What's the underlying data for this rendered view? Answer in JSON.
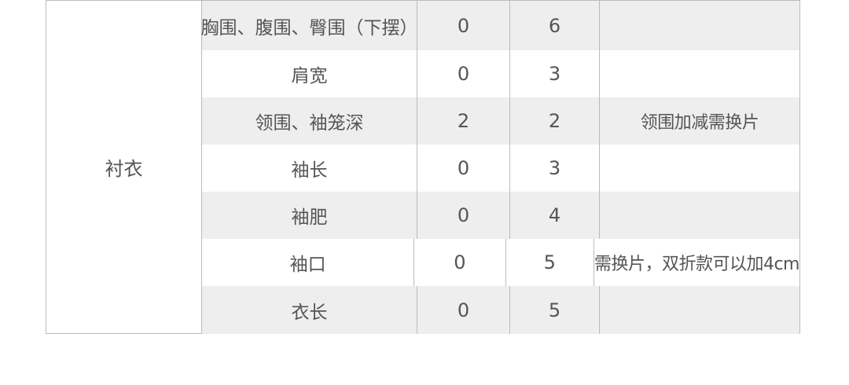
{
  "table": {
    "category": "衬衣",
    "rows": [
      {
        "part": "胸围、腹围、臀围（下摆）",
        "min": "0",
        "max": "6",
        "note": ""
      },
      {
        "part": "肩宽",
        "min": "0",
        "max": "3",
        "note": ""
      },
      {
        "part": "领围、袖笼深",
        "min": "2",
        "max": "2",
        "note": "领围加减需换片"
      },
      {
        "part": "袖长",
        "min": "0",
        "max": "3",
        "note": ""
      },
      {
        "part": "袖肥",
        "min": "0",
        "max": "4",
        "note": ""
      },
      {
        "part": "袖口",
        "min": "0",
        "max": "5",
        "note": "需换片，双折款可以加4cm"
      },
      {
        "part": "衣长",
        "min": "0",
        "max": "5",
        "note": ""
      }
    ],
    "colors": {
      "stripe": "#eeeeee",
      "border": "#bbbbbb",
      "text": "#555555"
    }
  }
}
